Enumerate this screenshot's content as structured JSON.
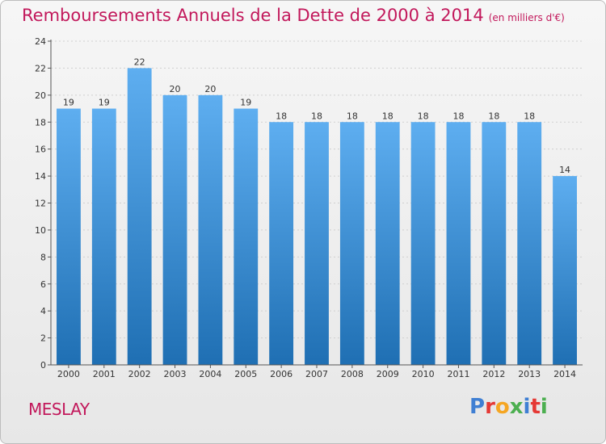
{
  "title": "Remboursements Annuels de la Dette de 2000 à 2014",
  "subtitle": "(en milliers d'€)",
  "place": "MESLAY",
  "logo": {
    "letters": [
      "P",
      "r",
      "o",
      "x",
      "i",
      "t",
      "i"
    ],
    "colors": [
      "#3f7fd3",
      "#e53935",
      "#f5a623",
      "#4caf50",
      "#3f7fd3",
      "#e53935",
      "#4caf50"
    ]
  },
  "colors": {
    "bar_top": "#5eaef0",
    "bar_bottom": "#1f6fb3",
    "accent": "#c2185b"
  },
  "chart_data": {
    "type": "bar",
    "categories": [
      "2000",
      "2001",
      "2002",
      "2003",
      "2004",
      "2005",
      "2006",
      "2007",
      "2008",
      "2009",
      "2010",
      "2011",
      "2012",
      "2013",
      "2014"
    ],
    "values": [
      19,
      19,
      22,
      20,
      20,
      19,
      18,
      18,
      18,
      18,
      18,
      18,
      18,
      18,
      14
    ],
    "title": "Remboursements Annuels de la Dette de 2000 à 2014",
    "subtitle": "(en milliers d'€)",
    "xlabel": "",
    "ylabel": "",
    "ylim": [
      0,
      24
    ],
    "yticks": [
      0,
      2,
      4,
      6,
      8,
      10,
      12,
      14,
      16,
      18,
      20,
      22,
      24
    ],
    "grid": true
  }
}
